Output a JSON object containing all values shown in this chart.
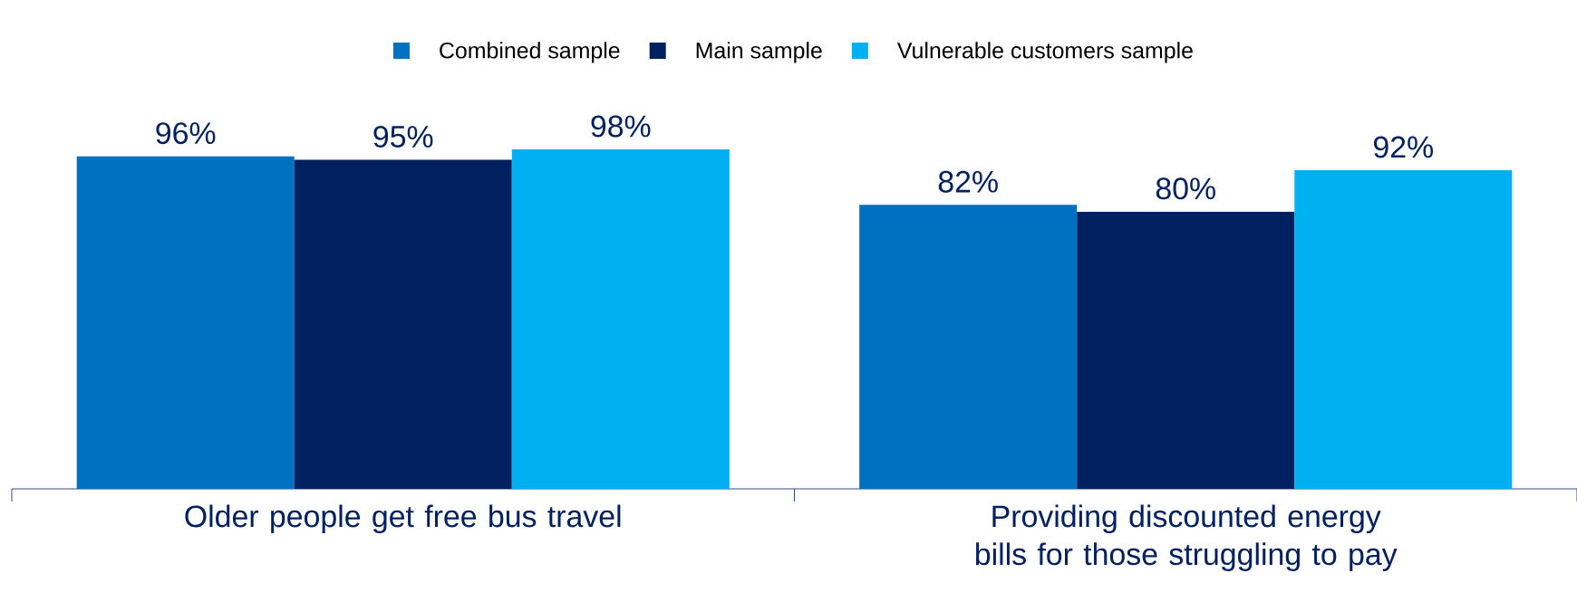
{
  "chart_data": {
    "type": "bar",
    "categories": [
      "Older people get free bus travel",
      "Providing discounted energy bills for those struggling to pay"
    ],
    "series": [
      {
        "name": "Combined sample",
        "color": "#0070c0",
        "values": [
          96,
          82
        ],
        "value_labels": [
          "96%",
          "82%"
        ]
      },
      {
        "name": "Main sample",
        "color": "#002060",
        "values": [
          95,
          80
        ],
        "value_labels": [
          "95%",
          "80%"
        ]
      },
      {
        "name": "Vulnerable customers sample",
        "color": "#00b0f0",
        "values": [
          98,
          92
        ],
        "value_labels": [
          "98%",
          "92%"
        ]
      }
    ],
    "legend": "top",
    "tick_labels": "x"
  }
}
